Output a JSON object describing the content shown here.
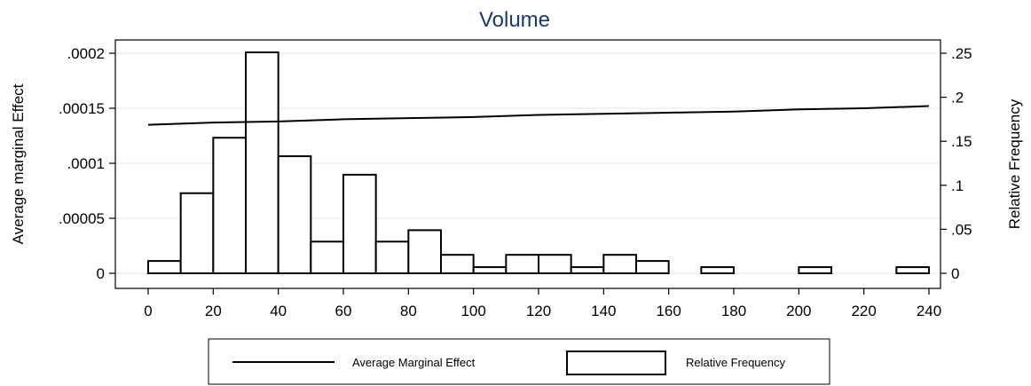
{
  "chart_data": {
    "type": "bar",
    "title": "Volume",
    "x_ticks": [
      "0",
      "20",
      "40",
      "60",
      "80",
      "100",
      "120",
      "140",
      "160",
      "180",
      "200",
      "220",
      "240"
    ],
    "xlim": [
      0,
      240
    ],
    "y_left_label": "Average marginal Effect",
    "y_left_ticks": [
      "0",
      ".00005",
      ".0001",
      ".00015",
      ".0002"
    ],
    "y_left_lim": [
      0,
      0.0002
    ],
    "y_right_label": "Relative Frequency",
    "y_right_ticks": [
      "0",
      ".05",
      ".1",
      ".15",
      ".2",
      ".25"
    ],
    "y_right_lim": [
      0,
      0.25
    ],
    "grid": true,
    "legend_position": "bottom",
    "series": [
      {
        "name": "Average Marginal Effect",
        "kind": "line",
        "axis": "left",
        "x": [
          0,
          20,
          40,
          60,
          80,
          100,
          120,
          140,
          160,
          180,
          200,
          220,
          240
        ],
        "values": [
          0.000135,
          0.000137,
          0.000138,
          0.00014,
          0.000141,
          0.000142,
          0.000144,
          0.000145,
          0.000146,
          0.000147,
          0.000149,
          0.00015,
          0.000152
        ]
      },
      {
        "name": "Relative Frequency",
        "kind": "bar",
        "axis": "right",
        "bin_width": 10,
        "bin_starts": [
          0,
          10,
          20,
          30,
          40,
          50,
          60,
          70,
          80,
          90,
          100,
          110,
          120,
          130,
          140,
          150,
          170,
          200,
          230
        ],
        "values": [
          0.014,
          0.091,
          0.154,
          0.251,
          0.133,
          0.036,
          0.112,
          0.036,
          0.049,
          0.021,
          0.007,
          0.021,
          0.021,
          0.007,
          0.021,
          0.014,
          0.007,
          0.007,
          0.007
        ]
      }
    ]
  }
}
